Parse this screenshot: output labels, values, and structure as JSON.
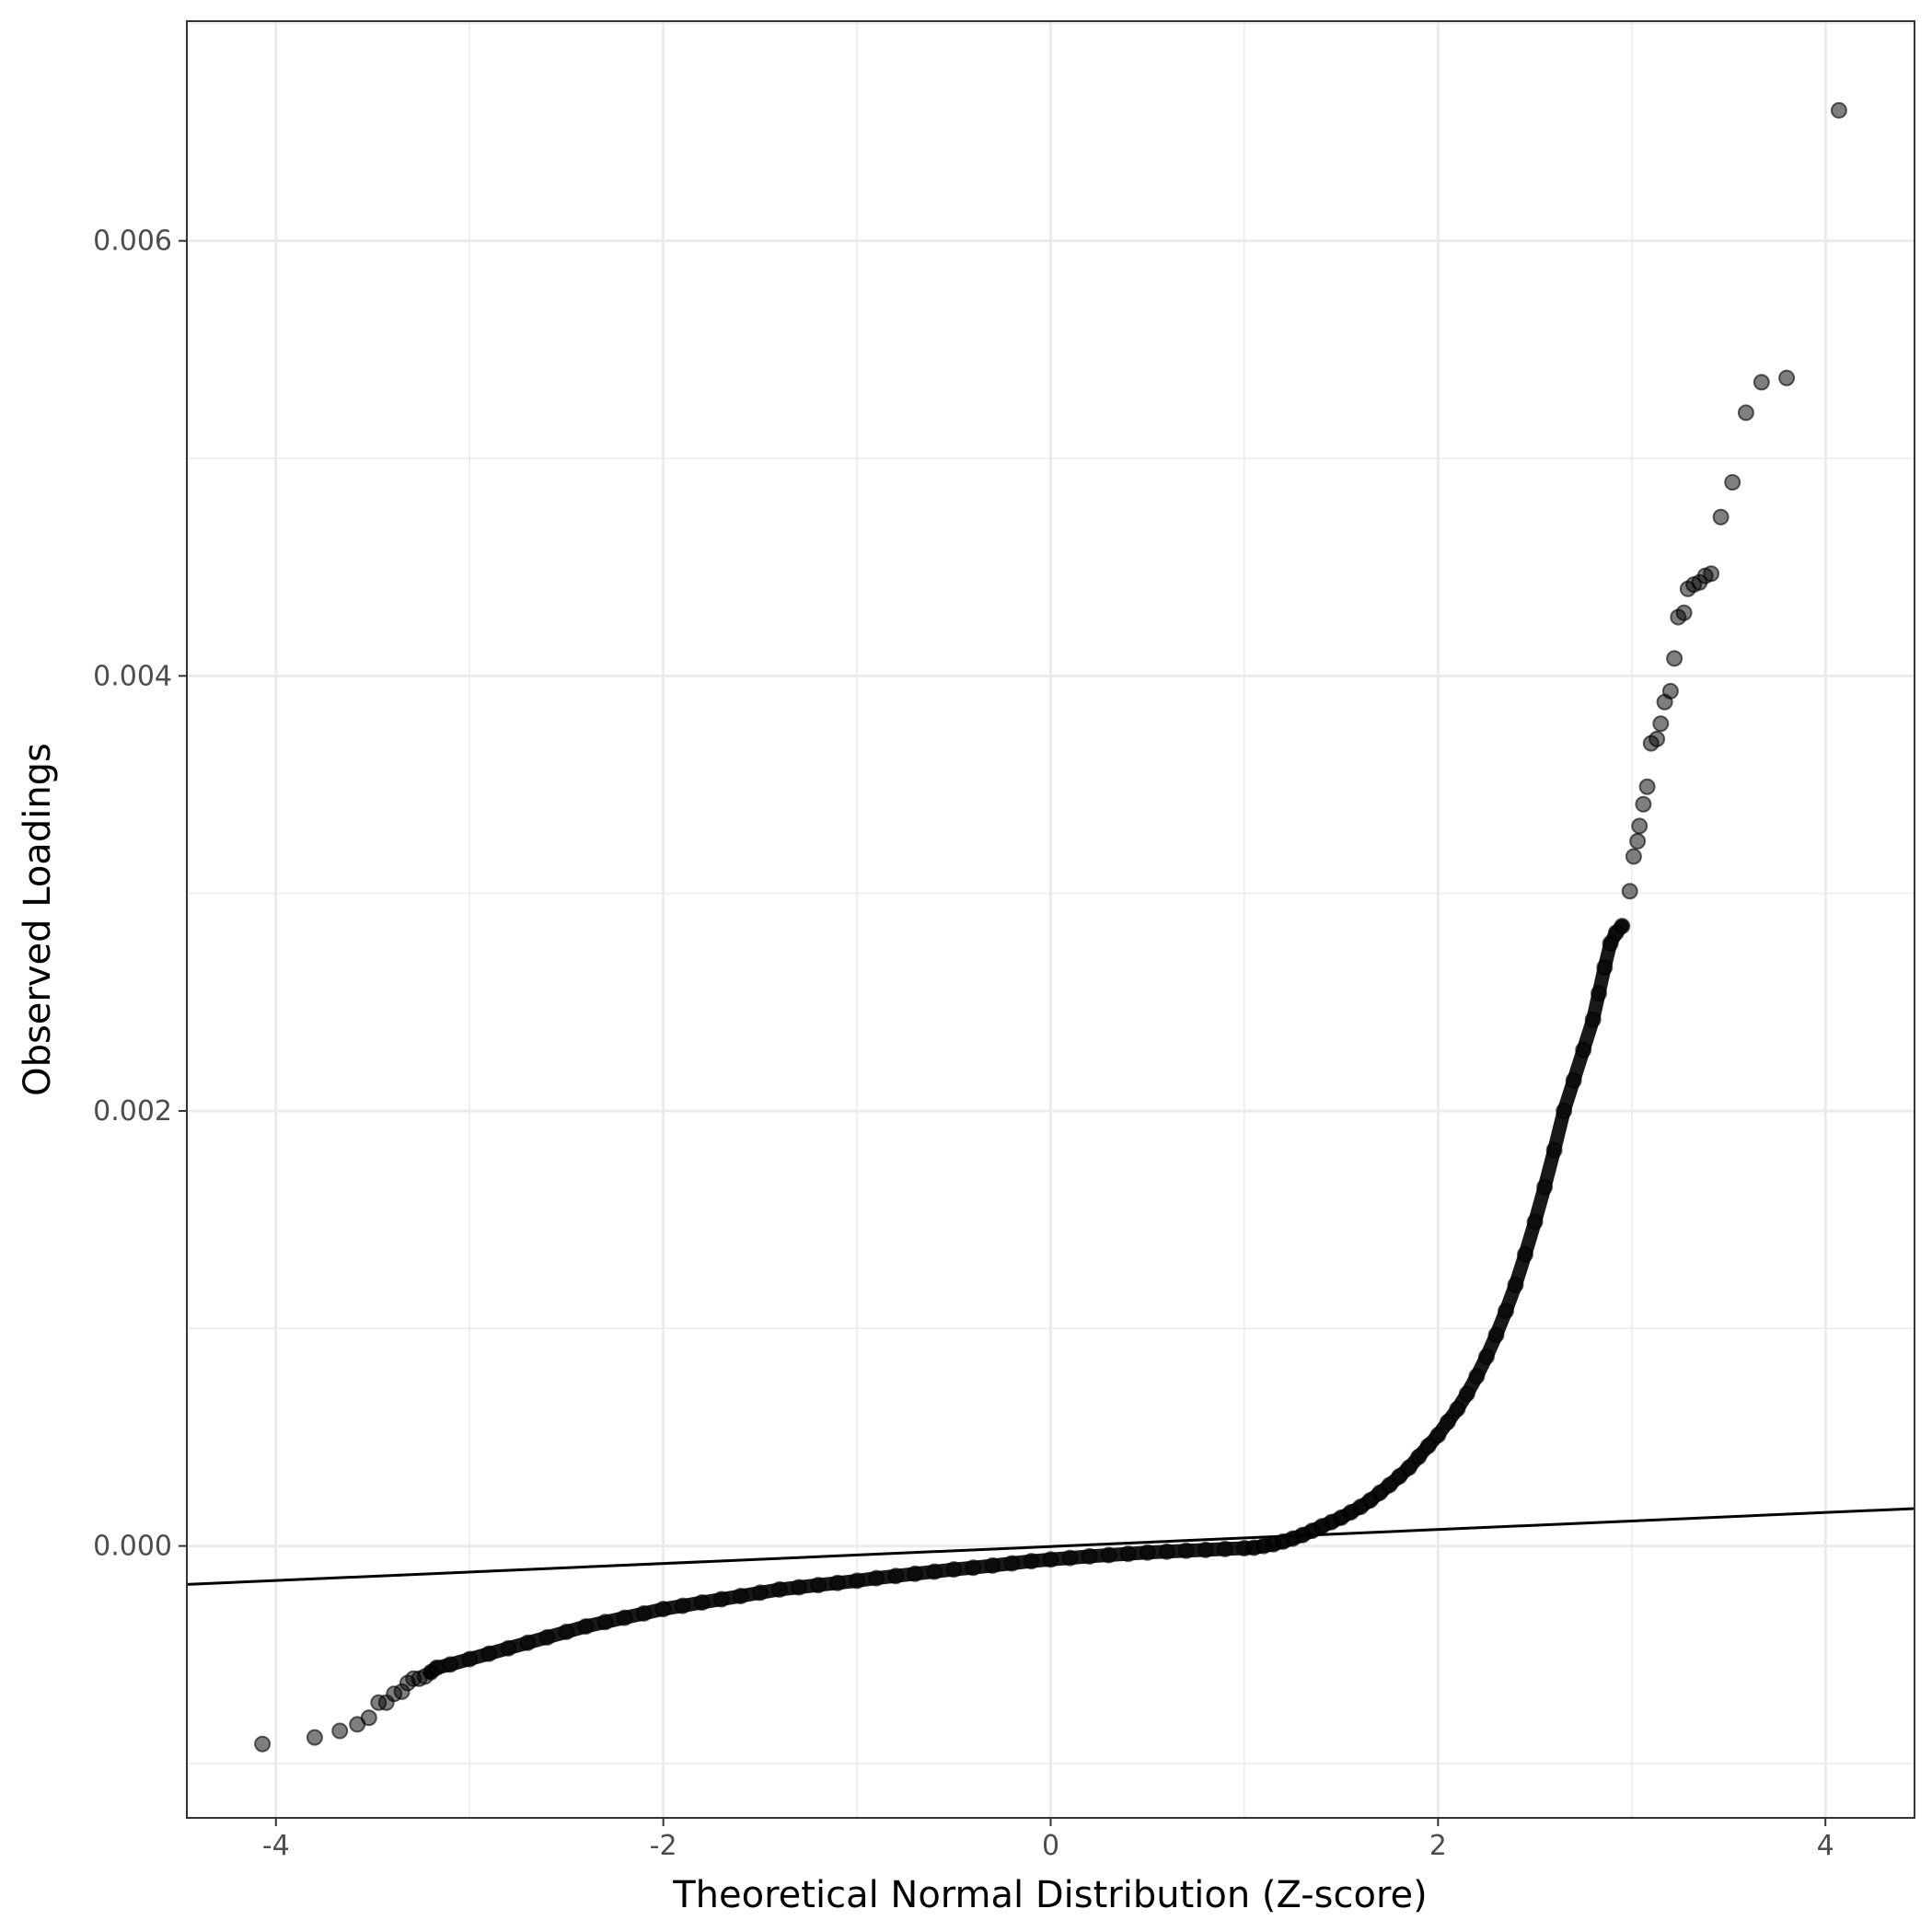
{
  "chart_data": {
    "type": "scatter",
    "title": "",
    "xlabel": "Theoretical Normal Distribution (Z-score)",
    "ylabel": "Observed Loadings",
    "xlim": [
      -4.46,
      4.46
    ],
    "ylim": [
      -0.00125,
      0.00701
    ],
    "x_ticks": [
      -4,
      -2,
      0,
      2,
      4
    ],
    "x_tick_labels": [
      "-4",
      "-2",
      "0",
      "2",
      "4"
    ],
    "y_ticks": [
      0.0,
      0.002,
      0.004,
      0.006
    ],
    "y_tick_labels": [
      "0.000",
      "0.002",
      "0.004",
      "0.006"
    ],
    "grid": true,
    "legend": "none",
    "reference_line": {
      "slope": 3.91e-05,
      "intercept": -2.5e-06,
      "color": "#000000"
    },
    "series": [
      {
        "color": "#000000",
        "marker": "circle",
        "points": [
          [
            -4.07,
            -0.00091
          ],
          [
            -3.8,
            -0.00088
          ],
          [
            -3.67,
            -0.00085
          ],
          [
            -3.58,
            -0.00082
          ],
          [
            -3.52,
            -0.00079
          ],
          [
            -3.47,
            -0.00072
          ],
          [
            -3.43,
            -0.00072
          ],
          [
            -3.39,
            -0.00068
          ],
          [
            -3.35,
            -0.00067
          ],
          [
            -3.32,
            -0.00063
          ],
          [
            -3.29,
            -0.00061
          ],
          [
            -3.26,
            -0.00061
          ],
          [
            -3.23,
            -0.0006
          ],
          [
            -3.2,
            -0.00058
          ],
          [
            -3.17,
            -0.00056
          ],
          [
            -3.1,
            -0.000545
          ],
          [
            -3.0,
            -0.00052
          ],
          [
            -2.9,
            -0.000495
          ],
          [
            -2.8,
            -0.00047
          ],
          [
            -2.7,
            -0.000445
          ],
          [
            -2.6,
            -0.00042
          ],
          [
            -2.5,
            -0.000395
          ],
          [
            -2.4,
            -0.00037
          ],
          [
            -2.3,
            -0.00035
          ],
          [
            -2.2,
            -0.00033
          ],
          [
            -2.1,
            -0.00031
          ],
          [
            -2.0,
            -0.00029
          ],
          [
            -1.9,
            -0.000275
          ],
          [
            -1.8,
            -0.00026
          ],
          [
            -1.7,
            -0.000245
          ],
          [
            -1.6,
            -0.00023
          ],
          [
            -1.5,
            -0.000215
          ],
          [
            -1.4,
            -0.0002
          ],
          [
            -1.3,
            -0.00019
          ],
          [
            -1.2,
            -0.00018
          ],
          [
            -1.1,
            -0.00017
          ],
          [
            -1.0,
            -0.00016
          ],
          [
            -0.9,
            -0.000148
          ],
          [
            -0.8,
            -0.000138
          ],
          [
            -0.7,
            -0.000128
          ],
          [
            -0.6,
            -0.000118
          ],
          [
            -0.5,
            -0.000108
          ],
          [
            -0.4,
            -0.0001
          ],
          [
            -0.3,
            -9e-05
          ],
          [
            -0.2,
            -8e-05
          ],
          [
            -0.1,
            -7e-05
          ],
          [
            0.0,
            -6.2e-05
          ],
          [
            0.1,
            -5.5e-05
          ],
          [
            0.2,
            -4.8e-05
          ],
          [
            0.3,
            -4.2e-05
          ],
          [
            0.4,
            -3.6e-05
          ],
          [
            0.5,
            -3e-05
          ],
          [
            0.6,
            -2.6e-05
          ],
          [
            0.7,
            -2.2e-05
          ],
          [
            0.8,
            -1.8e-05
          ],
          [
            0.9,
            -1.4e-05
          ],
          [
            1.0,
            -1e-05
          ],
          [
            1.05,
            -8e-06
          ],
          [
            1.1,
            0.0
          ],
          [
            1.15,
            8e-06
          ],
          [
            1.2,
            2e-05
          ],
          [
            1.25,
            3.4e-05
          ],
          [
            1.3,
            5e-05
          ],
          [
            1.35,
            7e-05
          ],
          [
            1.4,
            9e-05
          ],
          [
            1.45,
            0.00011
          ],
          [
            1.5,
            0.00013
          ],
          [
            1.55,
            0.000155
          ],
          [
            1.6,
            0.00018
          ],
          [
            1.65,
            0.00021
          ],
          [
            1.7,
            0.000245
          ],
          [
            1.75,
            0.00028
          ],
          [
            1.8,
            0.00032
          ],
          [
            1.85,
            0.00036
          ],
          [
            1.9,
            0.00041
          ],
          [
            1.95,
            0.00046
          ],
          [
            2.0,
            0.00051
          ],
          [
            2.05,
            0.00057
          ],
          [
            2.1,
            0.00063
          ],
          [
            2.15,
            0.0007
          ],
          [
            2.2,
            0.00078
          ],
          [
            2.25,
            0.00087
          ],
          [
            2.3,
            0.00097
          ],
          [
            2.35,
            0.00108
          ],
          [
            2.4,
            0.0012
          ],
          [
            2.45,
            0.00134
          ],
          [
            2.5,
            0.00149
          ],
          [
            2.55,
            0.00165
          ],
          [
            2.6,
            0.00182
          ],
          [
            2.65,
            0.002
          ],
          [
            2.7,
            0.00214
          ],
          [
            2.75,
            0.00228
          ],
          [
            2.8,
            0.00242
          ],
          [
            2.83,
            0.00254
          ],
          [
            2.86,
            0.00266
          ],
          [
            2.89,
            0.00277
          ],
          [
            2.92,
            0.00282
          ],
          [
            2.95,
            0.00285
          ],
          [
            2.99,
            0.00301
          ],
          [
            3.01,
            0.00317
          ],
          [
            3.03,
            0.00324
          ],
          [
            3.04,
            0.00331
          ],
          [
            3.06,
            0.00341
          ],
          [
            3.08,
            0.00349
          ],
          [
            3.1,
            0.00369
          ],
          [
            3.13,
            0.00371
          ],
          [
            3.15,
            0.00378
          ],
          [
            3.17,
            0.00388
          ],
          [
            3.2,
            0.00393
          ],
          [
            3.22,
            0.00408
          ],
          [
            3.24,
            0.00427
          ],
          [
            3.27,
            0.00429
          ],
          [
            3.29,
            0.0044
          ],
          [
            3.32,
            0.00442
          ],
          [
            3.35,
            0.00443
          ],
          [
            3.38,
            0.00446
          ],
          [
            3.41,
            0.00447
          ],
          [
            3.46,
            0.00473
          ],
          [
            3.52,
            0.00489
          ],
          [
            3.59,
            0.00521
          ],
          [
            3.67,
            0.00535
          ],
          [
            3.8,
            0.00537
          ],
          [
            4.07,
            0.0066
          ]
        ]
      }
    ]
  }
}
